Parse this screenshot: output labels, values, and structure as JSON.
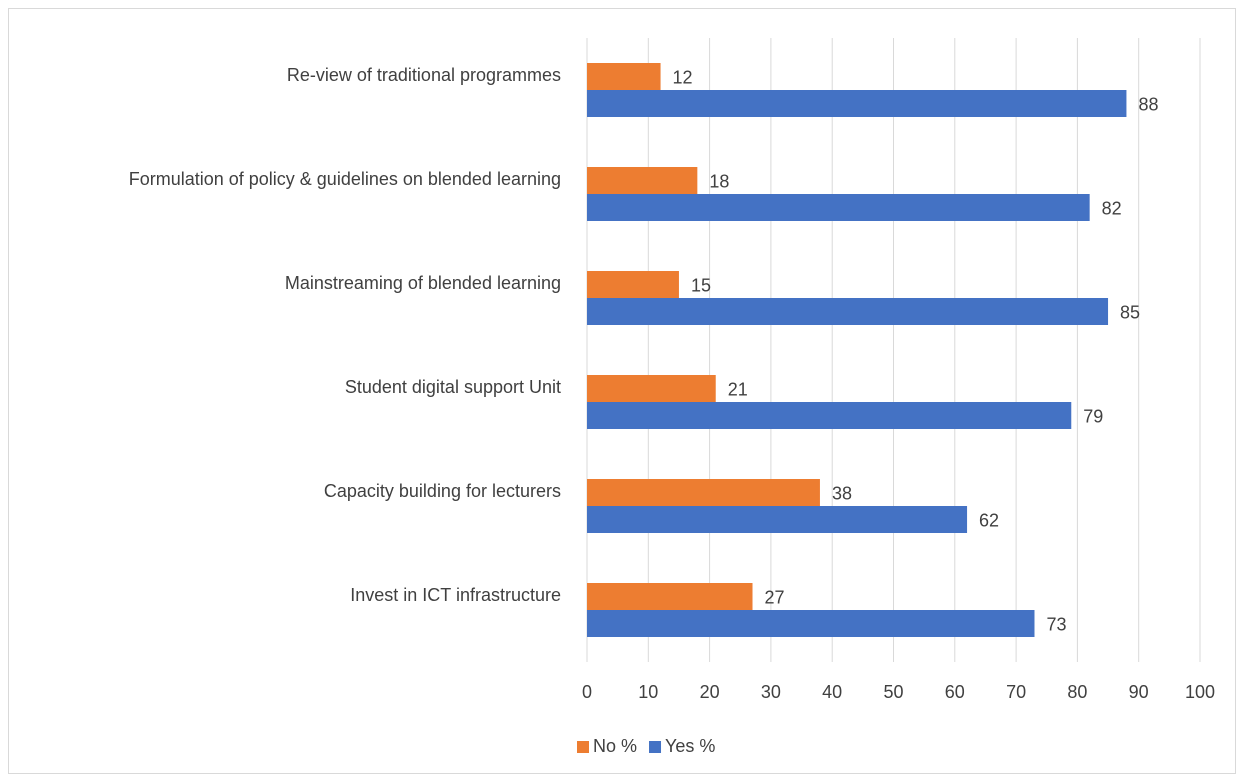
{
  "chart_data": {
    "type": "hbar",
    "categories": [
      "Re-view of traditional programmes",
      "Formulation of policy & guidelines on blended learning",
      "Mainstreaming of blended learning",
      "Student digital support Unit",
      "Capacity building for lecturers",
      "Invest in ICT infrastructure"
    ],
    "series": [
      {
        "name": "No %",
        "color": "#ed7d31",
        "values": [
          12,
          18,
          15,
          21,
          38,
          27
        ]
      },
      {
        "name": "Yes %",
        "color": "#4472c4",
        "values": [
          88,
          82,
          85,
          79,
          62,
          73
        ]
      }
    ],
    "xlim": [
      0,
      100
    ],
    "xticks": [
      0,
      10,
      20,
      30,
      40,
      50,
      60,
      70,
      80,
      90,
      100
    ],
    "grid": true,
    "legend": "bottom"
  }
}
